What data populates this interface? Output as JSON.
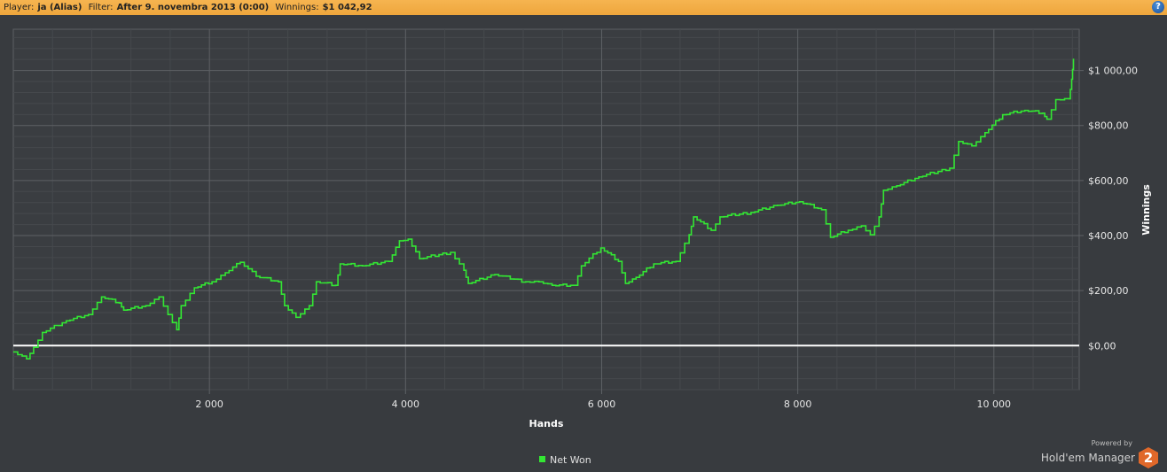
{
  "header": {
    "player_label": "Player:",
    "player_value": "ja (Alias)",
    "filter_label": "Filter:",
    "filter_value": "After 9. novembra 2013 (0:00)",
    "winnings_label": "Winnings:",
    "winnings_value": "$1 042,92",
    "help_icon": "help-icon"
  },
  "branding": {
    "powered_by": "Powered by",
    "name": "Hold'em Manager",
    "badge": "2"
  },
  "chart_data": {
    "type": "line",
    "xlabel": "Hands",
    "ylabel": "Winnings",
    "xlim": [
      0,
      10870
    ],
    "ylim": [
      -160,
      1150
    ],
    "x_ticks": [
      2000,
      4000,
      6000,
      8000,
      10000
    ],
    "x_tick_labels": [
      "2 000",
      "4 000",
      "6 000",
      "8 000",
      "10 000"
    ],
    "y_ticks": [
      0,
      200,
      400,
      600,
      800,
      1000
    ],
    "y_tick_labels": [
      "$0,00",
      "$200,00",
      "$400,00",
      "$600,00",
      "$800,00",
      "$1 000,00"
    ],
    "grid": true,
    "y_axis_side": "right",
    "legend_position": "bottom",
    "series": [
      {
        "name": "Net Won",
        "color": "#33e633",
        "x": [
          0,
          135,
          207,
          297,
          540,
          766,
          900,
          1081,
          1126,
          1351,
          1486,
          1577,
          1667,
          1712,
          1847,
          2027,
          2162,
          2315,
          2477,
          2703,
          2766,
          2883,
          3018,
          3090,
          3288,
          3333,
          3559,
          3829,
          3937,
          4027,
          4144,
          4459,
          4595,
          4640,
          4910,
          5225,
          5360,
          5495,
          5720,
          5793,
          5991,
          6171,
          6243,
          6351,
          6531,
          6757,
          6892,
          6937,
          7117,
          7207,
          7523,
          7793,
          8018,
          8243,
          8333,
          8514,
          8649,
          8739,
          8829,
          8874,
          9009,
          9234,
          9550,
          9640,
          9775,
          9910,
          10090,
          10315,
          10495,
          10541,
          10631,
          10766,
          10793,
          10811
        ],
        "y": [
          -23,
          -48,
          -6,
          48,
          90,
          113,
          177,
          155,
          129,
          145,
          177,
          113,
          58,
          145,
          210,
          232,
          265,
          303,
          252,
          232,
          145,
          103,
          145,
          232,
          219,
          297,
          290,
          306,
          381,
          387,
          316,
          339,
          274,
          226,
          258,
          232,
          232,
          219,
          219,
          290,
          355,
          306,
          226,
          248,
          297,
          306,
          403,
          468,
          419,
          468,
          484,
          510,
          523,
          494,
          394,
          419,
          435,
          403,
          468,
          565,
          581,
          613,
          645,
          742,
          726,
          774,
          839,
          855,
          845,
          823,
          894,
          897,
          968,
          1043
        ]
      }
    ],
    "zero_line_color": "#ffffff"
  }
}
